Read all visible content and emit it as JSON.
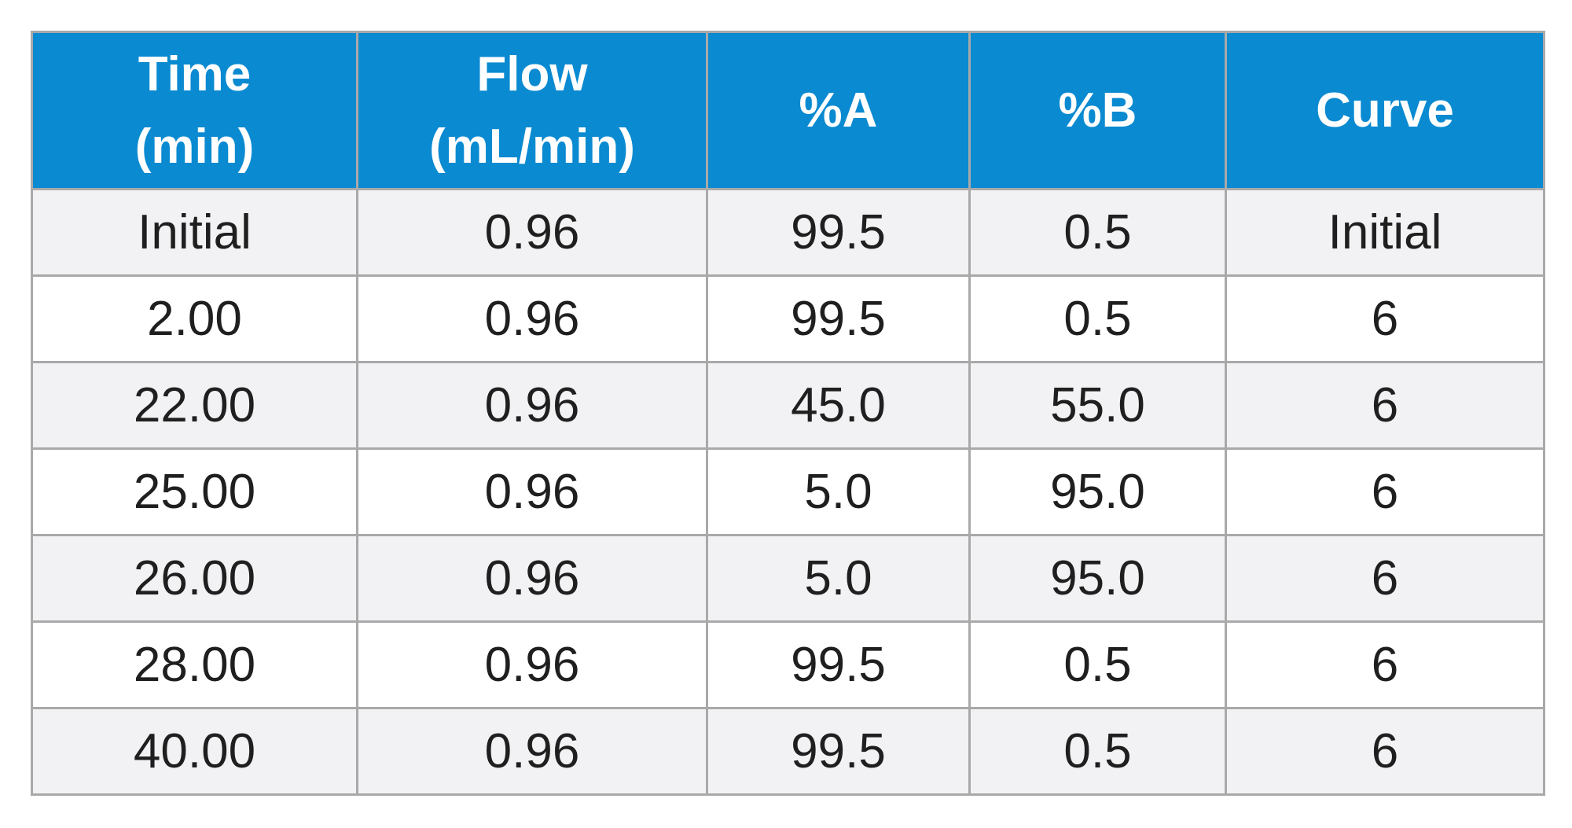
{
  "table": {
    "headers": [
      {
        "line1": "Time",
        "line2": "(min)"
      },
      {
        "line1": "Flow",
        "line2": "(mL/min)"
      },
      {
        "line1": "%A",
        "line2": ""
      },
      {
        "line1": "%B",
        "line2": ""
      },
      {
        "line1": "Curve",
        "line2": ""
      }
    ],
    "rows": [
      [
        "Initial",
        "0.96",
        "99.5",
        "0.5",
        "Initial"
      ],
      [
        "2.00",
        "0.96",
        "99.5",
        "0.5",
        "6"
      ],
      [
        "22.00",
        "0.96",
        "45.0",
        "55.0",
        "6"
      ],
      [
        "25.00",
        "0.96",
        "5.0",
        "95.0",
        "6"
      ],
      [
        "26.00",
        "0.96",
        "5.0",
        "95.0",
        "6"
      ],
      [
        "28.00",
        "0.96",
        "99.5",
        "0.5",
        "6"
      ],
      [
        "40.00",
        "0.96",
        "99.5",
        "0.5",
        "6"
      ]
    ]
  },
  "colors": {
    "header_bg": "#0a8ad1",
    "header_text": "#ffffff",
    "row_alt_bg": "#f2f2f4",
    "row_bg": "#ffffff",
    "border": "#a9a9a9"
  }
}
